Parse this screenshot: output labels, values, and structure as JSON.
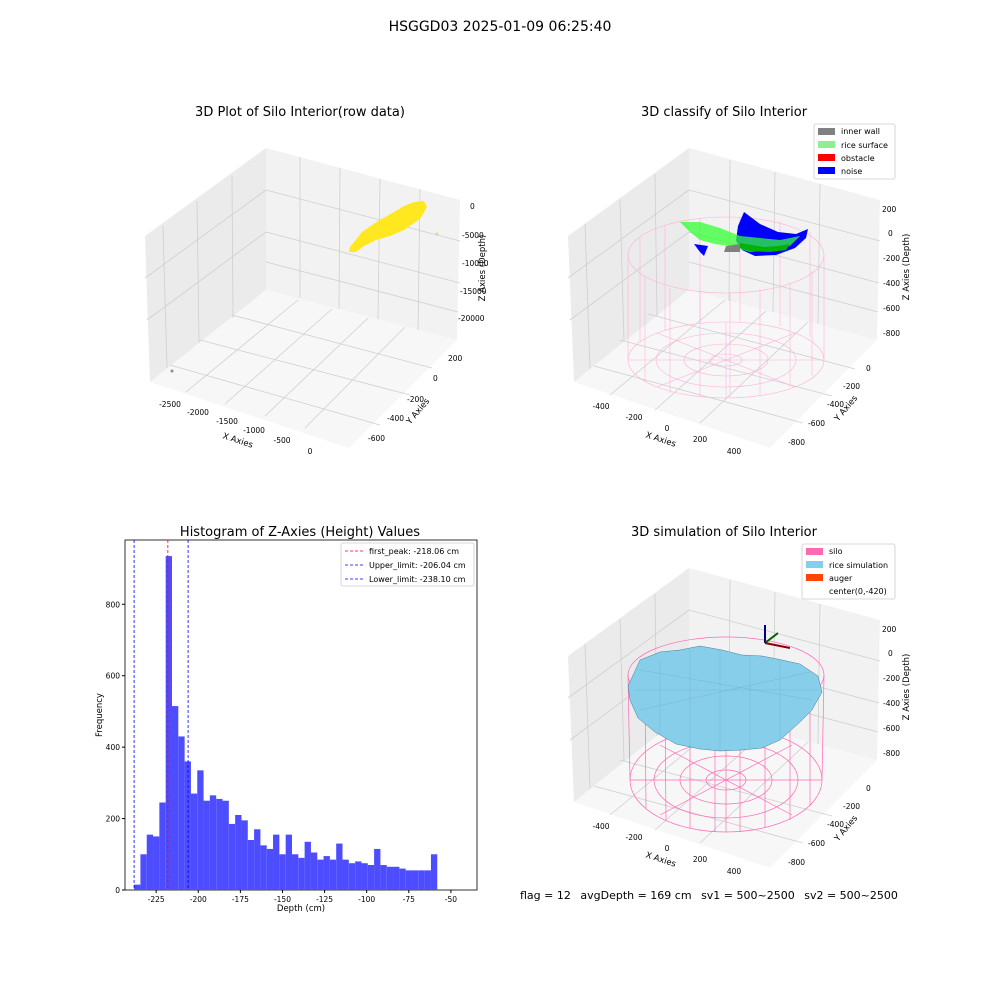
{
  "suptitle": "HSGGD03 2025-01-09 06:25:40",
  "footer": {
    "flag": "flag = 12",
    "avg_depth": "avgDepth = 169 cm",
    "sv1": "sv1 = 500~2500",
    "sv2": "sv2 = 500~2500"
  },
  "colors": {
    "inner_wall": "#808080",
    "rice_surface": "#90ee90",
    "obstacle": "#ff0000",
    "noise": "#0000ff",
    "silo": "#ff69b4",
    "rice_simulation": "#87ceeb",
    "auger": "#ff4500",
    "hist_bar": "#4d4dff",
    "raw_points": "#ffe81f"
  },
  "chart_data": [
    {
      "type": "scatter",
      "projection": "3d",
      "title": "3D Plot of Silo Interior(row data)",
      "xlabel": "X Axies",
      "ylabel": "Y Axies",
      "zlabel": "Z Axies (Depth)",
      "x_ticks": [
        "-2500",
        "-2000",
        "-1500",
        "-1000",
        "-500",
        "0"
      ],
      "y_ticks": [
        "200",
        "0",
        "-200",
        "-400",
        "-600"
      ],
      "z_ticks": [
        "0",
        "-5000",
        "-10000",
        "-15000",
        "-20000"
      ],
      "grid": true
    },
    {
      "type": "scatter",
      "projection": "3d",
      "title": "3D classify of Silo Interior",
      "xlabel": "X Axies",
      "ylabel": "Y Axies",
      "zlabel": "Z Axies (Depth)",
      "x_ticks": [
        "-400",
        "-200",
        "0",
        "200",
        "400"
      ],
      "y_ticks": [
        "0",
        "-200",
        "-400",
        "-600",
        "-800"
      ],
      "z_ticks": [
        "200",
        "0",
        "-200",
        "-400",
        "-600",
        "-800"
      ],
      "legend": [
        "inner wall",
        "rice surface",
        "obstacle",
        "noise"
      ],
      "legend_loc": "upper right",
      "grid": true
    },
    {
      "type": "bar",
      "title": "Histogram of Z-Axies (Height) Values",
      "xlabel": "Depth (cm)",
      "ylabel": "Frequency",
      "x_ticks": [
        "-225",
        "-200",
        "-175",
        "-150",
        "-125",
        "-100",
        "-75",
        "-50"
      ],
      "y_ticks": [
        "0",
        "200",
        "400",
        "600",
        "800"
      ],
      "xlim": [
        -243.5,
        -34.5
      ],
      "ylim": [
        0,
        980
      ],
      "bin_width": 3.75,
      "bin_start": -238.1,
      "values": [
        15,
        100,
        155,
        150,
        245,
        935,
        515,
        430,
        360,
        270,
        335,
        250,
        265,
        255,
        250,
        185,
        210,
        195,
        140,
        170,
        125,
        115,
        155,
        100,
        155,
        100,
        90,
        135,
        105,
        85,
        95,
        85,
        130,
        85,
        75,
        80,
        75,
        70,
        115,
        70,
        65,
        65,
        60,
        55,
        55,
        55,
        55,
        100
      ],
      "lines": [
        {
          "label": "first_peak: -218.06 cm",
          "x": -218.06,
          "color": "#ff0000"
        },
        {
          "label": "Upper_limit: -206.04 cm",
          "x": -206.04,
          "color": "#0000ff"
        },
        {
          "label": "Lower_limit: -238.10 cm",
          "x": -238.1,
          "color": "#0000ff"
        }
      ],
      "legend_loc": "upper right"
    },
    {
      "type": "area",
      "projection": "3d",
      "title": "3D simulation of Silo Interior",
      "xlabel": "X Axies",
      "ylabel": "Y Axies",
      "zlabel": "Z Axies (Depth)",
      "x_ticks": [
        "-400",
        "-200",
        "0",
        "200",
        "400"
      ],
      "y_ticks": [
        "0",
        "-200",
        "-400",
        "-600",
        "-800"
      ],
      "z_ticks": [
        "200",
        "0",
        "-200",
        "-400",
        "-600",
        "-800"
      ],
      "legend": [
        "silo",
        "rice simulation",
        "auger",
        "center(0,-420)"
      ],
      "legend_loc": "upper right",
      "grid": true
    }
  ]
}
